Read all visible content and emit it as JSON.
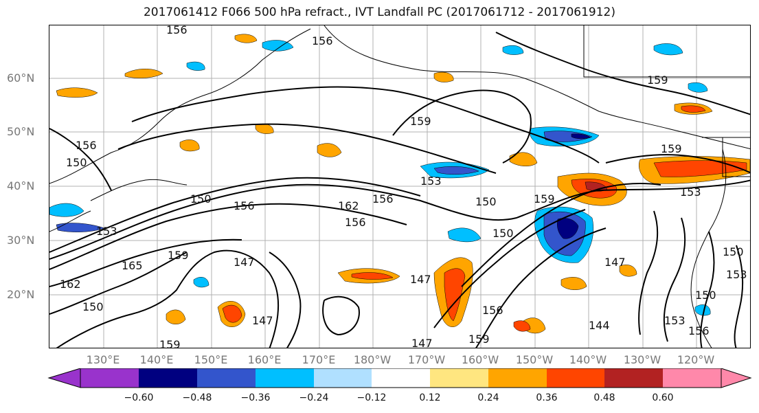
{
  "title": "2017061412 F066 500 hPa refract., IVT Landfall PC (2017061712 - 2017061912)",
  "lat_labels": [
    "60°N",
    "50°N",
    "40°N",
    "30°N",
    "20°N"
  ],
  "lon_labels": [
    "130°E",
    "140°E",
    "150°E",
    "160°E",
    "170°E",
    "180°W",
    "170°W",
    "160°W",
    "150°W",
    "140°W",
    "130°W",
    "120°W"
  ],
  "colorbar": {
    "colors": [
      "#9933cc",
      "#000080",
      "#3355cc",
      "#00bfff",
      "#b0e0ff",
      "#ffffff",
      "#ffe680",
      "#ffa500",
      "#ff4500",
      "#b22222",
      "#ff88aa"
    ],
    "ticks": [
      "−0.60",
      "−0.48",
      "−0.36",
      "−0.24",
      "−0.12",
      "0.12",
      "0.24",
      "0.36",
      "0.48",
      "0.60"
    ]
  },
  "contour_labels": [
    "156",
    "156",
    "159",
    "159",
    "153",
    "156",
    "150",
    "150",
    "156",
    "162",
    "156",
    "156",
    "150",
    "159",
    "153",
    "159",
    "165",
    "162",
    "147",
    "150",
    "147",
    "159",
    "150",
    "147",
    "159",
    "156",
    "147",
    "144",
    "147",
    "150",
    "153",
    "156",
    "159",
    "150",
    "153",
    "153"
  ]
}
